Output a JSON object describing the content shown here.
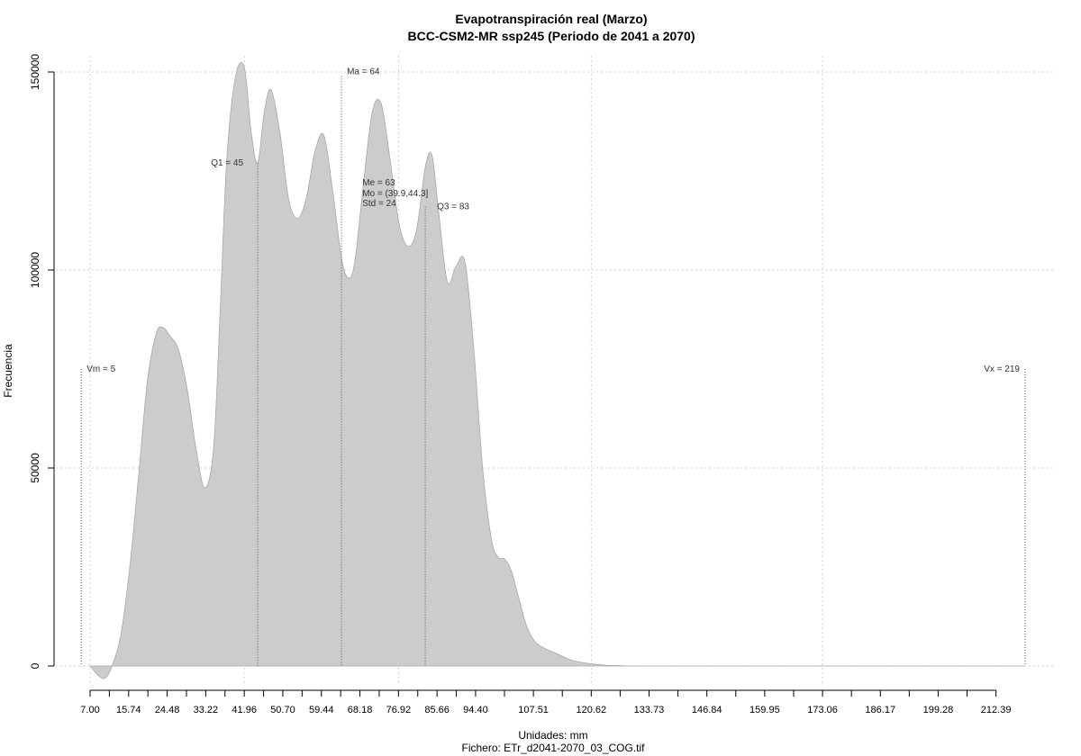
{
  "chart_data": {
    "type": "area",
    "title": "Evapotranspiración real (Marzo)",
    "subtitle": "BCC-CSM2-MR ssp245 (Periodo de 2041 a 2070)",
    "xlabel": "Unidades: mm",
    "ylabel": "Frecuencia",
    "footer": "Fichero: ETr_d2041-2070_03_COG.tif",
    "xlim": [
      7,
      219
    ],
    "ylim": [
      0,
      150000
    ],
    "x_ticks": [
      "7.00",
      "15.74",
      "24.48",
      "33.22",
      "41.96",
      "50.70",
      "59.44",
      "68.18",
      "76.92",
      "85.66",
      "94.40",
      "107.51",
      "120.62",
      "133.73",
      "146.84",
      "159.95",
      "173.06",
      "186.17",
      "199.28",
      "212.39"
    ],
    "y_ticks": [
      "0",
      "50000",
      "100000",
      "150000"
    ],
    "grid": true,
    "fill_color": "#cccccc",
    "series": [
      {
        "x": [
          7,
          9,
          10.5,
          12,
          14,
          16,
          18,
          20,
          22,
          23.5,
          25,
          27,
          29,
          31,
          33,
          35,
          36.5,
          38,
          40,
          42,
          43.5,
          45,
          46.5,
          48,
          50,
          52,
          54,
          56,
          58,
          60,
          62,
          64,
          65.5,
          67,
          69,
          71,
          73,
          75,
          77,
          79,
          81,
          83,
          84.5,
          86,
          88,
          90,
          92,
          94,
          96,
          98,
          99.5,
          101,
          102.5,
          104,
          106,
          108,
          110,
          112,
          114,
          116,
          118,
          121,
          124,
          127,
          130,
          135,
          140,
          150,
          170,
          200,
          219
        ],
        "y": [
          0,
          -2500,
          -3000,
          0,
          8000,
          25000,
          48000,
          72000,
          84000,
          85500,
          83500,
          80000,
          70000,
          55000,
          45000,
          55000,
          90000,
          128000,
          149000,
          151000,
          135000,
          127000,
          140000,
          145500,
          135000,
          118000,
          113000,
          118000,
          130000,
          134000,
          120000,
          103000,
          98000,
          102000,
          122000,
          140000,
          142000,
          128000,
          112000,
          106000,
          110000,
          126000,
          129000,
          115000,
          97000,
          101000,
          102000,
          80000,
          50000,
          32000,
          27500,
          27000,
          24000,
          18000,
          10000,
          6000,
          4500,
          3500,
          2500,
          1500,
          1000,
          500,
          200,
          100,
          0,
          0,
          0,
          0,
          0,
          0,
          0
        ]
      }
    ],
    "annotations": [
      {
        "label": "Vm = 5",
        "x": 5,
        "y_top": 75000
      },
      {
        "label": "Q1 = 45",
        "x": 45,
        "y_top": 127000
      },
      {
        "label": "Ma = 64",
        "x": 64,
        "y_top": 149000
      },
      {
        "label": "Me = 63",
        "x": 63
      },
      {
        "label": "Mo = (39.9,44.3]",
        "x": 63
      },
      {
        "label": "Std = 24",
        "x": 63
      },
      {
        "label": "Q3 = 83",
        "x": 83,
        "y_top": 116000
      },
      {
        "label": "Vx = 219",
        "x": 219,
        "y_top": 75000
      }
    ]
  }
}
